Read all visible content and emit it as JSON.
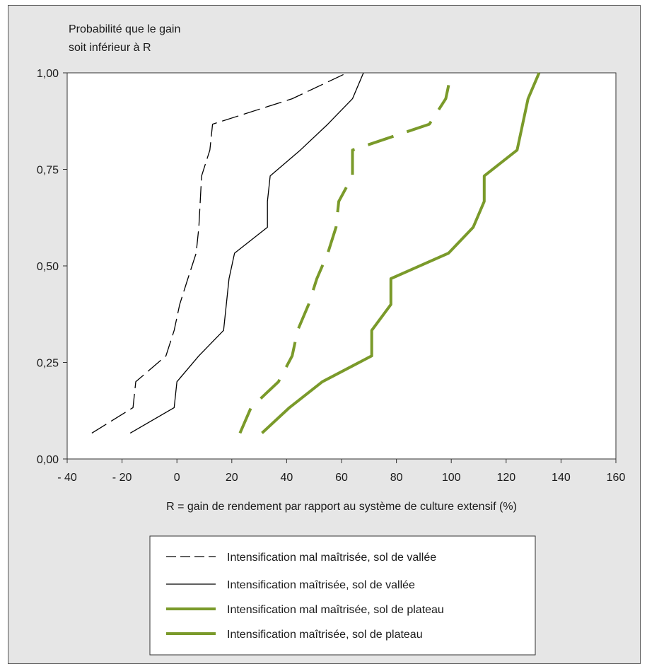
{
  "chart_data": {
    "type": "line",
    "ylabel_lines": [
      "Probabilité que le gain",
      "soit inférieur à R"
    ],
    "xlabel": "R = gain de rendement par rapport au système de culture extensif (%)",
    "xlim": [
      -40,
      160
    ],
    "ylim": [
      0,
      1
    ],
    "x_ticks": [
      -40,
      -20,
      0,
      20,
      40,
      60,
      80,
      100,
      120,
      140,
      160
    ],
    "x_tick_labels": [
      "- 40",
      "- 20",
      "0",
      "20",
      "40",
      "60",
      "80",
      "100",
      "120",
      "140",
      "160"
    ],
    "y_ticks": [
      0,
      0.25,
      0.5,
      0.75,
      1
    ],
    "y_tick_labels": [
      "0,00",
      "0,25",
      "0,50",
      "0,75",
      "1,00"
    ],
    "grid": false,
    "legend_position": "bottom-center",
    "series": [
      {
        "name": "Intensification mal maîtrisée, sol de vallée",
        "color": "#000000",
        "style": "dashed-thin",
        "points": [
          [
            -31,
            0.067
          ],
          [
            -16,
            0.133
          ],
          [
            -15,
            0.2
          ],
          [
            -4,
            0.267
          ],
          [
            -1,
            0.333
          ],
          [
            1,
            0.4
          ],
          [
            4,
            0.467
          ],
          [
            7,
            0.533
          ],
          [
            8,
            0.6
          ],
          [
            9,
            0.733
          ],
          [
            12,
            0.8
          ],
          [
            13,
            0.867
          ],
          [
            42,
            0.933
          ],
          [
            62,
            1.0
          ]
        ]
      },
      {
        "name": "Intensification maîtrisée, sol de vallée",
        "color": "#000000",
        "style": "solid-thin",
        "points": [
          [
            -17,
            0.067
          ],
          [
            -1,
            0.133
          ],
          [
            0,
            0.2
          ],
          [
            8,
            0.267
          ],
          [
            17,
            0.333
          ],
          [
            19,
            0.467
          ],
          [
            21,
            0.533
          ],
          [
            33,
            0.6
          ],
          [
            33,
            0.667
          ],
          [
            34,
            0.733
          ],
          [
            45,
            0.8
          ],
          [
            55,
            0.867
          ],
          [
            64,
            0.933
          ],
          [
            68,
            1.0
          ]
        ]
      },
      {
        "name": "Intensification mal maîtrisée, sol de plateau",
        "color": "#7a9a2a",
        "style": "dashed-thick",
        "points": [
          [
            23,
            0.067
          ],
          [
            27,
            0.133
          ],
          [
            37,
            0.2
          ],
          [
            42,
            0.267
          ],
          [
            44,
            0.333
          ],
          [
            48,
            0.4
          ],
          [
            51,
            0.467
          ],
          [
            55,
            0.533
          ],
          [
            58,
            0.6
          ],
          [
            59,
            0.667
          ],
          [
            64,
            0.733
          ],
          [
            64,
            0.8
          ],
          [
            92,
            0.867
          ],
          [
            98,
            0.933
          ],
          [
            100,
            1.0
          ]
        ]
      },
      {
        "name": "Intensification maîtrisée, sol de plateau",
        "color": "#7a9a2a",
        "style": "solid-thick",
        "points": [
          [
            31,
            0.067
          ],
          [
            41,
            0.133
          ],
          [
            53,
            0.2
          ],
          [
            71,
            0.267
          ],
          [
            71,
            0.333
          ],
          [
            78,
            0.4
          ],
          [
            78,
            0.467
          ],
          [
            99,
            0.533
          ],
          [
            108,
            0.6
          ],
          [
            112,
            0.667
          ],
          [
            112,
            0.733
          ],
          [
            124,
            0.8
          ],
          [
            128,
            0.933
          ],
          [
            132,
            1.0
          ]
        ]
      }
    ]
  }
}
